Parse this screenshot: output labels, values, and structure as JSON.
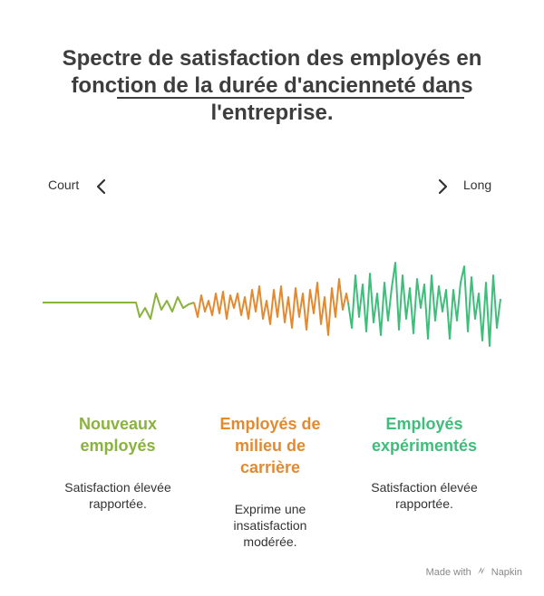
{
  "title": {
    "line1": "Spectre de satisfaction des employés en",
    "line2": "fonction de la durée d'ancienneté dans",
    "line3": "l'entreprise."
  },
  "axis": {
    "start_label": "Court",
    "end_label": "Long"
  },
  "segments": [
    {
      "heading_line1": "Nouveaux",
      "heading_line2": "employés",
      "description": [
        "Satisfaction élevée",
        "rapportée."
      ],
      "color": "#8ab33e"
    },
    {
      "heading_line1": "Employés de",
      "heading_line2": "milieu de",
      "heading_line3": "carrière",
      "description": [
        "Exprime une",
        "insatisfaction",
        "modérée."
      ],
      "color": "#e38a31"
    },
    {
      "heading_line1": "Employés",
      "heading_line2": "expérimentés",
      "description": [
        "Satisfaction élevée",
        "rapportée."
      ],
      "color": "#3fbd7a"
    }
  ],
  "footer": {
    "made_with": "Made with",
    "brand": "Napkin",
    "icon": "napkin-logo-icon"
  }
}
